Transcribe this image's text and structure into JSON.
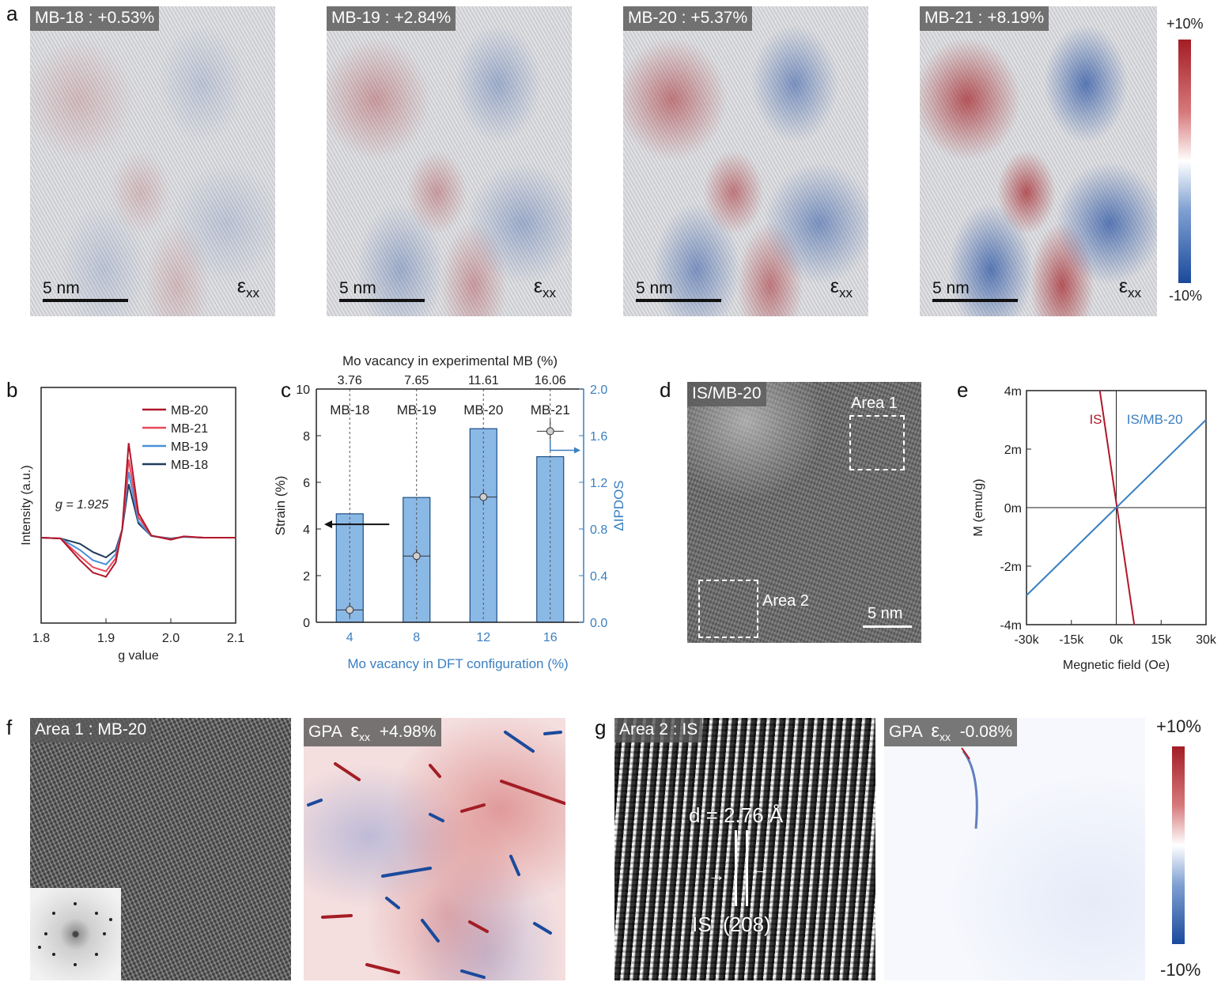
{
  "panel_labels": {
    "a": "a",
    "b": "b",
    "c": "c",
    "d": "d",
    "e": "e",
    "f": "f",
    "g": "g"
  },
  "panel_a": {
    "images": [
      {
        "tag": "MB-18 : +0.53%",
        "scale": "5 nm",
        "level": 0.053
      },
      {
        "tag": "MB-19 : +2.84%",
        "scale": "5 nm",
        "level": 0.284
      },
      {
        "tag": "MB-20 : +5.37%",
        "scale": "5 nm",
        "level": 0.537
      },
      {
        "tag": "MB-21 : +8.19%",
        "scale": "5 nm",
        "level": 0.819
      }
    ],
    "eps_symbol": "ε",
    "eps_sub": "xx",
    "colorbar": {
      "max": "+10%",
      "min": "-10%",
      "colors": [
        "#1a4a9c",
        "#ffffff",
        "#a31d24"
      ]
    }
  },
  "panel_b": {
    "xlabel": "g value",
    "ylabel": "Intensity (a.u.)",
    "annotation": "g = 1.925",
    "xticks": [
      "1.8",
      "1.9",
      "2.0",
      "2.1"
    ],
    "legend": [
      {
        "name": "MB-20",
        "color": "#b0172a"
      },
      {
        "name": "MB-21",
        "color": "#e8495a"
      },
      {
        "name": "MB-19",
        "color": "#4a90d9"
      },
      {
        "name": "MB-18",
        "color": "#1f3a5c"
      }
    ]
  },
  "panel_c": {
    "top_axis_title": "Mo vacancy in experimental MB (%)",
    "top_ticks": [
      "3.76",
      "7.65",
      "11.61",
      "16.06"
    ],
    "samples": [
      "MB-18",
      "MB-19",
      "MB-20",
      "MB-21"
    ],
    "ylabel_left": "Strain (%)",
    "ylabel_right": "ΔIPDOS",
    "xlabel": "Mo vacancy in DFT configuration (%)",
    "yticks_left": [
      "0",
      "2",
      "4",
      "6",
      "8",
      "10"
    ],
    "yticks_right": [
      "0.0",
      "0.4",
      "0.8",
      "1.2",
      "1.6",
      "2.0"
    ],
    "xticks": [
      "4",
      "8",
      "12",
      "16"
    ]
  },
  "panel_d": {
    "tag": "IS/MB-20",
    "area1": "Area 1",
    "area2": "Area 2",
    "scale": "5 nm"
  },
  "panel_e": {
    "xlabel": "Megnetic field (Oe)",
    "ylabel": "M (emu/g)",
    "xticks": [
      "-30k",
      "-15k",
      "0k",
      "15k",
      "30k"
    ],
    "yticks": [
      "4m",
      "2m",
      "0m",
      "-2m",
      "-4m"
    ],
    "legend": [
      {
        "name": "IS",
        "color": "#b0172a"
      },
      {
        "name": "IS/MB-20",
        "color": "#3a7fc0"
      }
    ]
  },
  "panel_f": {
    "tag_left": "Area 1 : MB-20",
    "tag_right_prefix": "GPA",
    "tag_right_value": "+4.98%"
  },
  "panel_g": {
    "tag_left": "Area 2 : IS",
    "d_label": "d = 2.76 Å",
    "plane_label": "IS  (208)",
    "tag_right_prefix": "GPA",
    "tag_right_value": "-0.08%",
    "colorbar": {
      "max": "+10%",
      "min": "-10%"
    }
  },
  "chart_data": [
    {
      "type": "line",
      "title": "",
      "xlabel": "g value",
      "ylabel": "Intensity (a.u.)",
      "xlim": [
        1.8,
        2.1
      ],
      "x": [
        1.8,
        1.83,
        1.86,
        1.88,
        1.9,
        1.915,
        1.925,
        1.935,
        1.95,
        1.97,
        2.0,
        2.02,
        2.05,
        2.1
      ],
      "series": [
        {
          "name": "MB-20",
          "values": [
            0,
            -0.02,
            -0.55,
            -0.85,
            -0.95,
            -0.6,
            0.2,
            2.3,
            0.6,
            0.05,
            -0.05,
            0.03,
            0,
            0
          ]
        },
        {
          "name": "MB-21",
          "values": [
            0,
            -0.02,
            -0.45,
            -0.72,
            -0.82,
            -0.5,
            0.2,
            1.9,
            0.5,
            0.05,
            -0.04,
            0.03,
            0,
            0
          ]
        },
        {
          "name": "MB-19",
          "values": [
            0,
            -0.02,
            -0.3,
            -0.55,
            -0.65,
            -0.4,
            0.2,
            1.6,
            0.4,
            0.04,
            -0.03,
            0.02,
            0,
            0
          ]
        },
        {
          "name": "MB-18",
          "values": [
            0,
            -0.02,
            -0.15,
            -0.35,
            -0.48,
            -0.3,
            0.2,
            1.3,
            0.35,
            0.04,
            -0.02,
            0.02,
            0,
            0
          ]
        }
      ]
    },
    {
      "type": "bar",
      "title": "",
      "xlabel": "Mo vacancy in DFT configuration (%)",
      "ylabel": "ΔIPDOS",
      "categories": [
        "4",
        "8",
        "12",
        "16"
      ],
      "ylim_right": [
        0,
        2.0
      ],
      "ylim_left": [
        0,
        10
      ],
      "series": [
        {
          "name": "ΔIPDOS",
          "values": [
            0.93,
            1.07,
            1.66,
            1.42
          ]
        },
        {
          "name": "Strain (%)",
          "x": [
            3.76,
            7.65,
            11.61,
            16.06
          ],
          "values": [
            0.53,
            2.84,
            5.37,
            8.19
          ],
          "yerr": [
            0.3,
            0.3,
            0.3,
            0.5
          ],
          "xerr": [
            0.7,
            0.7,
            0.7,
            0.7
          ]
        }
      ]
    },
    {
      "type": "line",
      "title": "",
      "xlabel": "Megnetic field (Oe)",
      "ylabel": "M (emu/g)",
      "xlim": [
        -30000,
        30000
      ],
      "ylim": [
        -0.004,
        0.004
      ],
      "series": [
        {
          "name": "IS",
          "x": [
            -5500,
            6000
          ],
          "values": [
            0.004,
            -0.004
          ]
        },
        {
          "name": "IS/MB-20",
          "x": [
            -30000,
            30000
          ],
          "values": [
            -0.003,
            0.003
          ]
        }
      ]
    }
  ]
}
